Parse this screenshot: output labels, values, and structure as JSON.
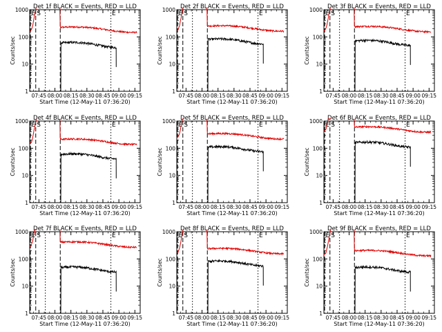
{
  "chart_data": {
    "type": "line",
    "shared": {
      "xlabel": "Start Time (12-May-11 07:36:20)",
      "ylabel": "Counts/sec",
      "x_ticks": [
        "07:45",
        "08:00",
        "08:15",
        "08:30",
        "08:45",
        "09:00",
        "09:15"
      ],
      "x_range": [
        "07:36:20",
        "09:20:00"
      ],
      "y_scale": "log",
      "y_range": [
        1,
        1000
      ],
      "y_ticks": [
        "1",
        "10",
        "100",
        "1000"
      ],
      "markers": [
        {
          "label": "E",
          "time": "07:37:00",
          "style": "dashed",
          "label_shown": true
        },
        {
          "label": "S",
          "time": "07:42:00",
          "style": "dashed",
          "label_shown": true
        },
        {
          "label": "",
          "time": "07:51:00",
          "style": "dotted",
          "label_shown": false
        },
        {
          "label": "",
          "time": "08:05:00",
          "style": "dashed",
          "label_shown": false
        },
        {
          "label": "E",
          "time": "08:52:30",
          "style": "dotted",
          "label_shown": true
        }
      ],
      "series_colors": {
        "events": "#000000",
        "lld": "#e00000"
      }
    },
    "panels": [
      {
        "title": "Det 1f BLACK = Events, RED = LLD",
        "lld_level": 180,
        "events_level": 52
      },
      {
        "title": "Det 2f BLACK = Events, RED = LLD",
        "lld_level": 200,
        "events_level": 70
      },
      {
        "title": "Det 3f BLACK = Events, RED = LLD",
        "lld_level": 190,
        "events_level": 62
      },
      {
        "title": "Det 4f BLACK = Events, RED = LLD",
        "lld_level": 170,
        "events_level": 52
      },
      {
        "title": "Det 5f BLACK = Events, RED = LLD",
        "lld_level": 270,
        "events_level": 95
      },
      {
        "title": "Det 6f BLACK = Events, RED = LLD",
        "lld_level": 480,
        "events_level": 140
      },
      {
        "title": "Det 7f BLACK = Events, RED = LLD",
        "lld_level": 330,
        "events_level": 42
      },
      {
        "title": "Det 8f BLACK = Events, RED = LLD",
        "lld_level": 190,
        "events_level": 70
      },
      {
        "title": "Det 9f BLACK = Events, RED = LLD",
        "lld_level": 160,
        "events_level": 42
      }
    ]
  }
}
